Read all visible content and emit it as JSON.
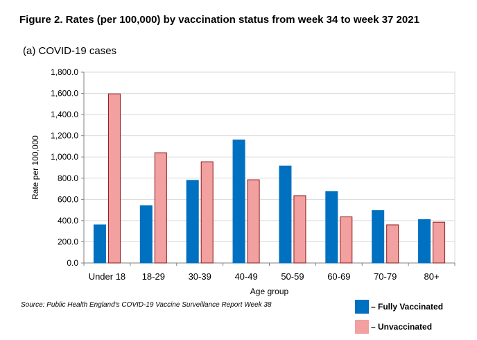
{
  "chart_data": {
    "type": "bar",
    "title": "Figure 2. Rates (per 100,000) by vaccination status from week 34 to week 37 2021",
    "subtitle": "(a) COVID-19 cases",
    "xlabel": "Age group",
    "ylabel": "Rate per 100,000",
    "ylim": [
      0,
      1800
    ],
    "yticks": [
      "0.0",
      "200.0",
      "400.0",
      "600.0",
      "800.0",
      "1,000.0",
      "1,200.0",
      "1,400.0",
      "1,600.0",
      "1,800.0"
    ],
    "categories": [
      "Under 18",
      "18-29",
      "30-39",
      "40-49",
      "50-59",
      "60-69",
      "70-79",
      "80+"
    ],
    "series": [
      {
        "name": "Fully Vaccinated",
        "color": "#0070c0",
        "stroke": "#0070c0",
        "values": [
          360,
          540,
          780,
          1160,
          915,
          675,
          495,
          410
        ]
      },
      {
        "name": "Unvaccinated",
        "color": "#f2a0a0",
        "stroke": "#8b1a1a",
        "values": [
          1595,
          1040,
          955,
          785,
          635,
          435,
          360,
          385
        ]
      }
    ],
    "legend": [
      {
        "label": "– Fully Vaccinated",
        "color": "#0070c0"
      },
      {
        "label": "– Unvaccinated",
        "color": "#f2a0a0"
      }
    ],
    "grid": true,
    "source": "Source: Public Health England's COVID-19 Vaccine Surveillance Report Week 38"
  }
}
